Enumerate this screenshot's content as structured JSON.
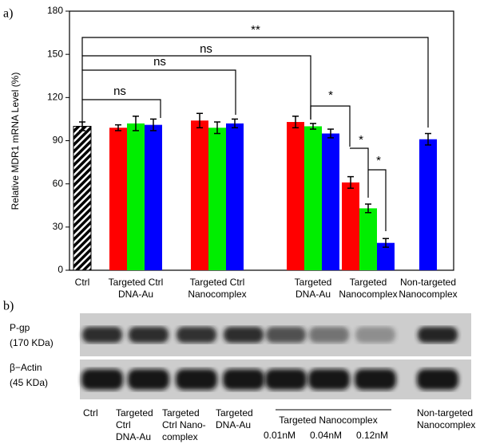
{
  "chart_data": {
    "type": "bar",
    "panel_label": "a)",
    "y_label": "Relative MDR1 mRNA Level (%)",
    "categories": [
      [
        "Ctrl"
      ],
      [
        "Targeted Ctrl",
        "DNA-Au"
      ],
      [
        "Targeted Ctrl",
        "Nanocomplex"
      ],
      [
        "Targeted",
        "DNA-Au"
      ],
      [
        "Targeted",
        "Nanocomplex"
      ],
      [
        "Non-targeted",
        "Nanocomplex"
      ]
    ],
    "series": [
      {
        "color": "#000000",
        "hatch": true,
        "values": [
          100,
          null,
          null,
          null,
          null,
          null
        ],
        "errors": [
          3,
          null,
          null,
          null,
          null,
          null
        ]
      },
      {
        "color": "#ff0000",
        "values": [
          null,
          99,
          104,
          103,
          61,
          null
        ],
        "errors": [
          null,
          2,
          5,
          4,
          4,
          null
        ]
      },
      {
        "color": "#00ee00",
        "values": [
          null,
          102,
          99,
          100,
          43,
          null
        ],
        "errors": [
          null,
          5,
          4,
          2,
          3,
          null
        ]
      },
      {
        "color": "#0000ff",
        "values": [
          null,
          101,
          102,
          95,
          19,
          91
        ],
        "errors": [
          null,
          4,
          3,
          3,
          3,
          4
        ]
      }
    ],
    "ylim": [
      0,
      180
    ],
    "yticks": [
      0,
      30,
      60,
      90,
      120,
      150,
      180
    ],
    "annotations": [
      "ns",
      "ns",
      "ns",
      "**",
      "*",
      "*",
      "*"
    ]
  },
  "blot": {
    "panel_label": "b)",
    "rows": [
      [
        "P-gp",
        "(170 KDa)"
      ],
      [
        "β−Actin",
        "(45 KDa)"
      ]
    ],
    "lanes": [
      [
        "Ctrl"
      ],
      [
        "Targeted",
        "Ctrl",
        "DNA-Au"
      ],
      [
        "Targeted",
        "Ctrl Nano-",
        "complex"
      ],
      [
        "Targeted",
        "DNA-Au"
      ],
      [
        "0.01nM"
      ],
      [
        "0.04nM"
      ],
      [
        "0.12nM"
      ],
      [
        "Non-targeted",
        "Nanocomplex"
      ]
    ],
    "group_label": "Targeted Nanocomplex"
  }
}
